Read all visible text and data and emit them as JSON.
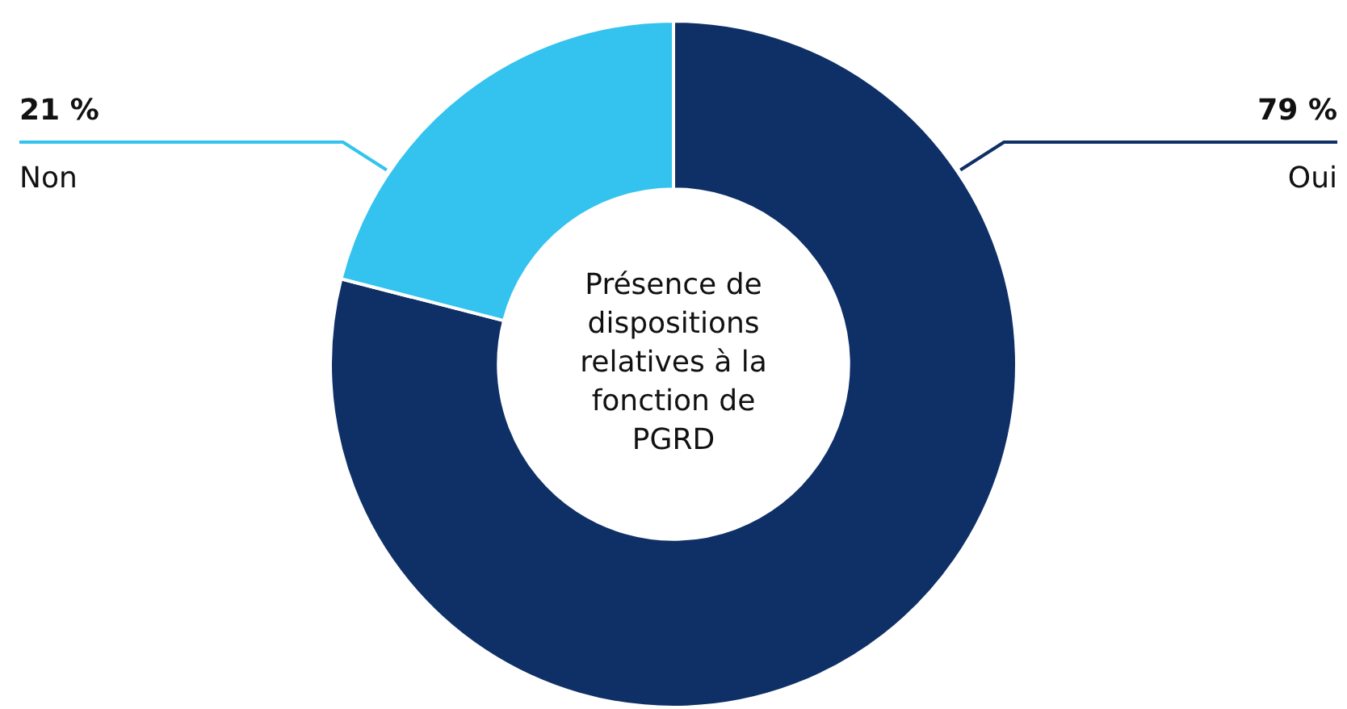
{
  "chart_data": {
    "type": "donut",
    "title": "Présence de dispositions relatives à la fonction de PGRD",
    "categories": [
      "Oui",
      "Non"
    ],
    "values": [
      79,
      21
    ],
    "colors": [
      "#0f3066",
      "#33c3ee"
    ],
    "value_labels": [
      "79 %",
      "21 %"
    ],
    "legend": false
  }
}
